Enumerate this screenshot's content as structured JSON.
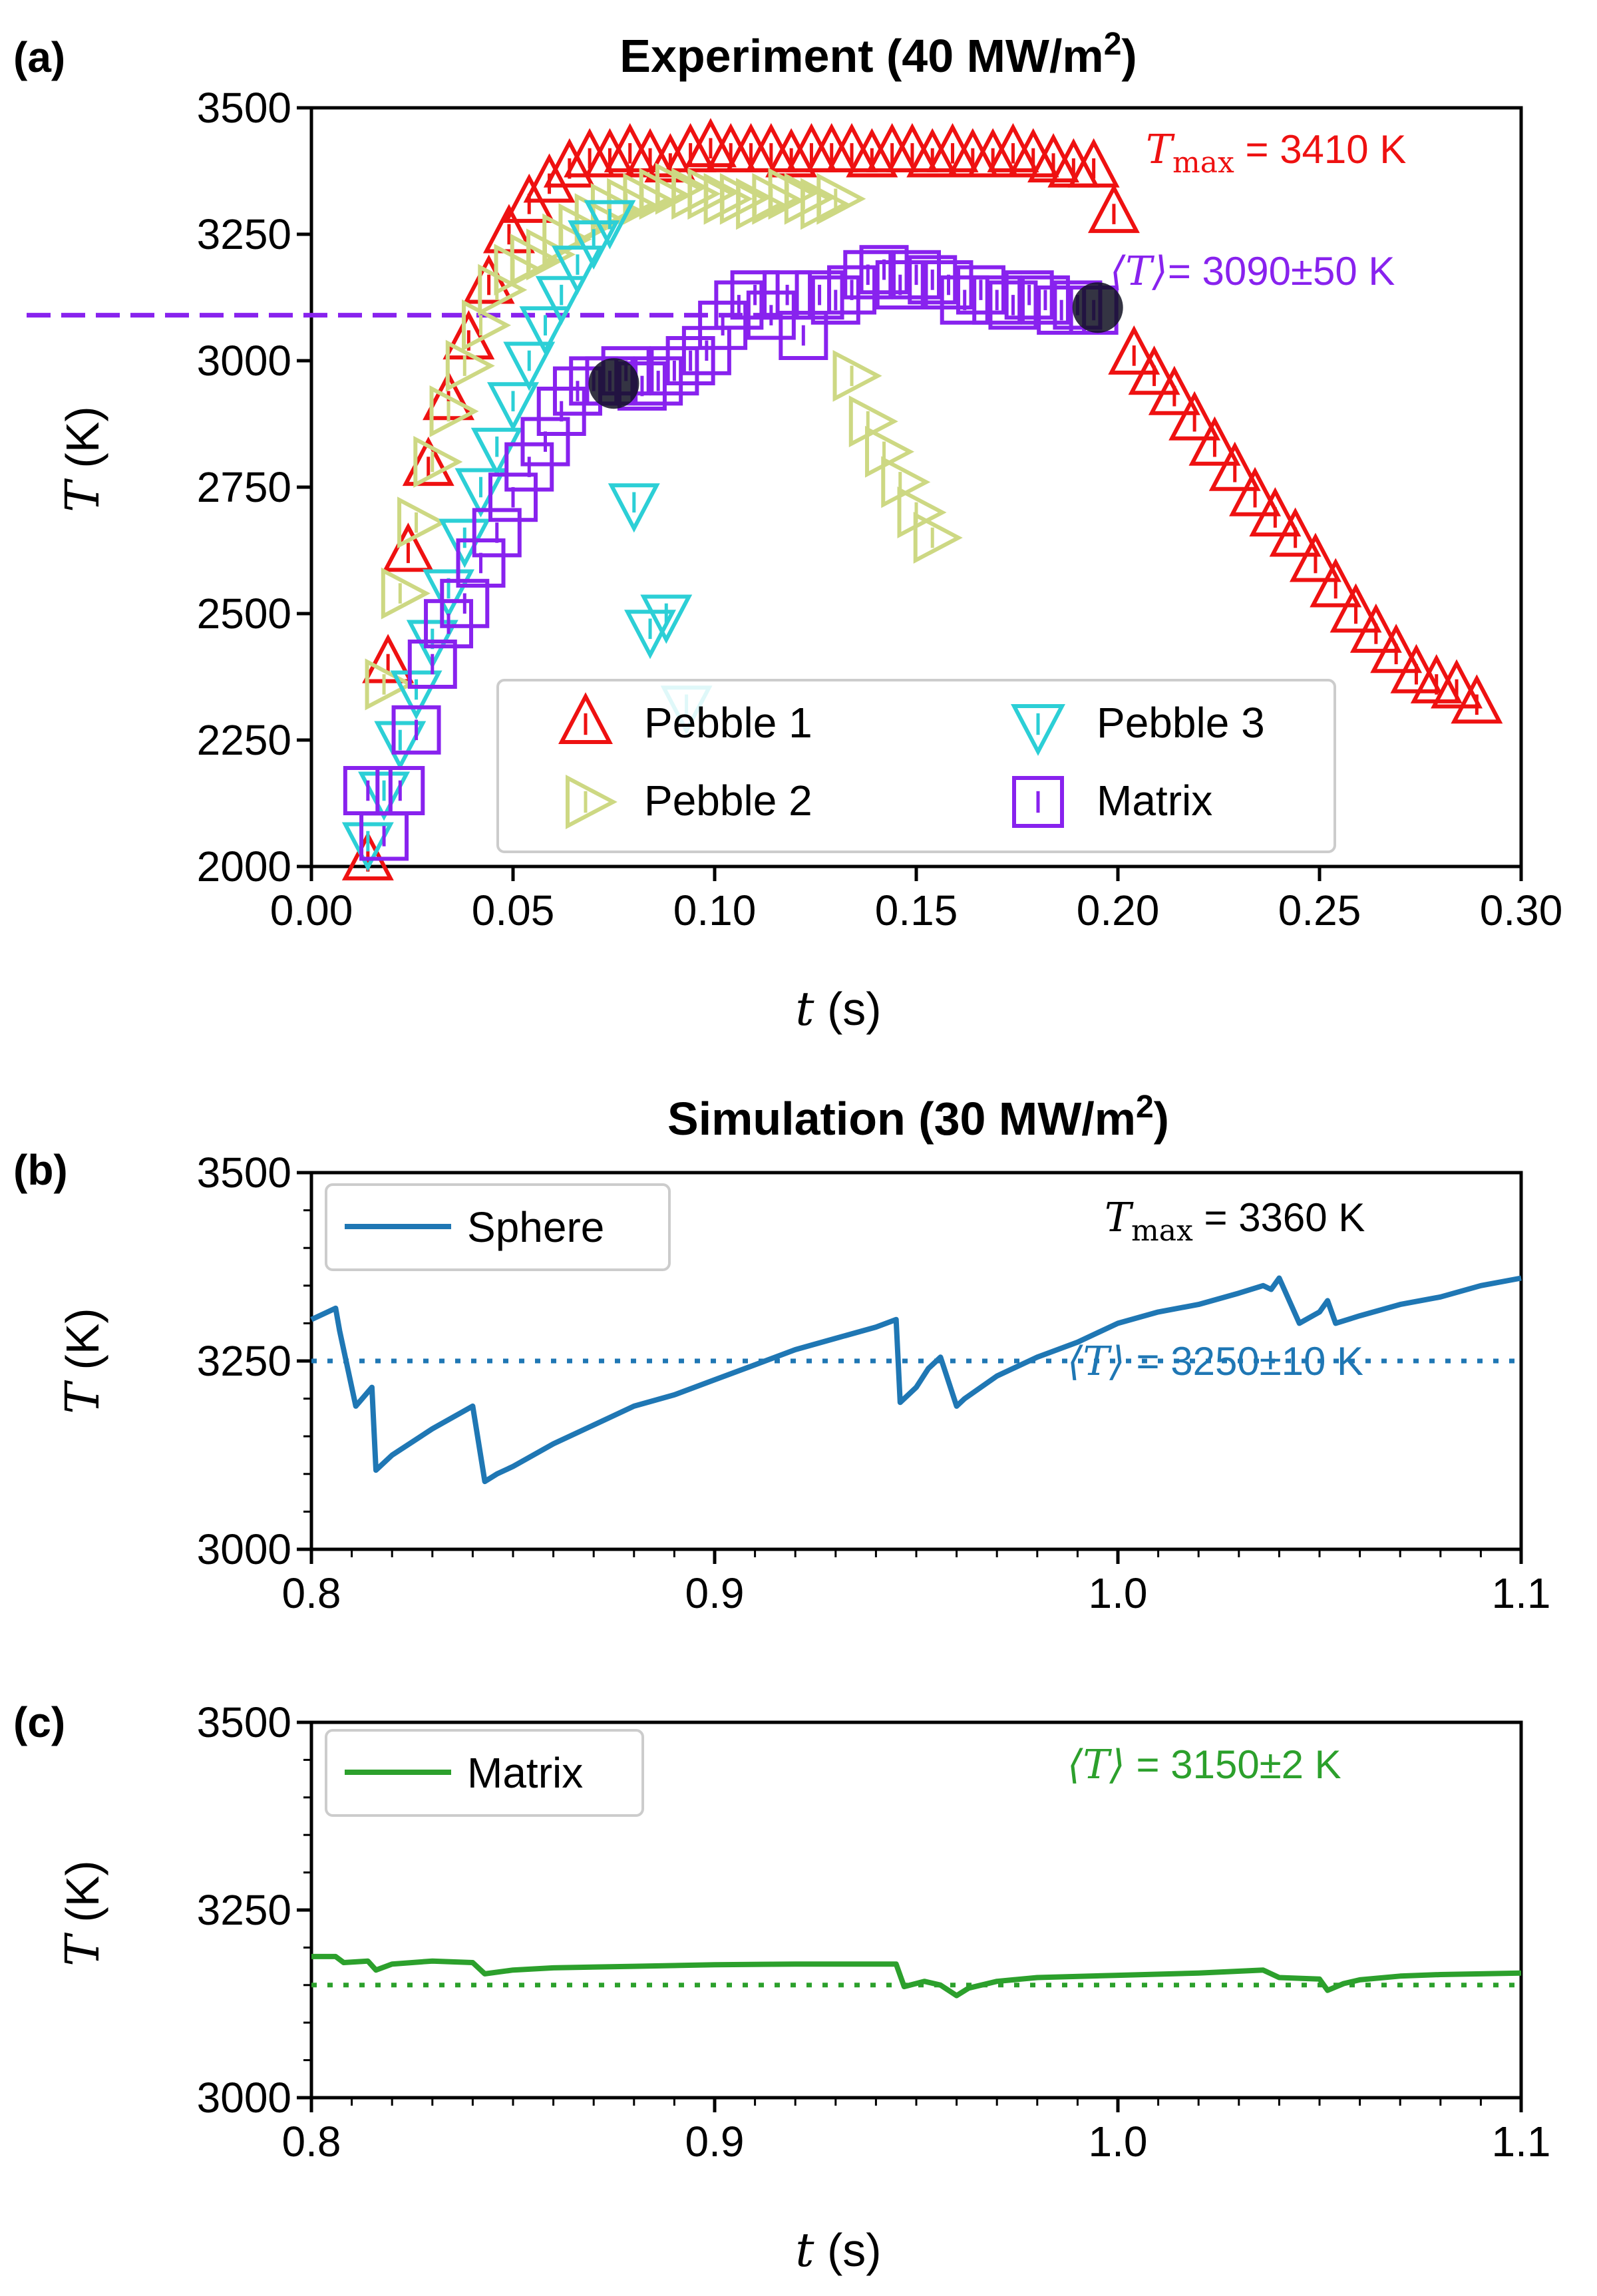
{
  "chart_data": [
    {
      "panel": "(a)",
      "type": "scatter",
      "title": "Experiment (40 MW/m",
      "title_sup": "2",
      "title_end": ")",
      "xlabel_var": "t",
      "xlabel_unit": " (s)",
      "ylabel_var": "T",
      "ylabel_unit": " (K)",
      "xlim": [
        0,
        0.3
      ],
      "ylim": [
        2000,
        3500
      ],
      "xticks": [
        "0.00",
        "0.05",
        "0.10",
        "0.15",
        "0.20",
        "0.25",
        "0.30"
      ],
      "yticks": [
        "2000",
        "2250",
        "2500",
        "2750",
        "3000",
        "3250",
        "3500"
      ],
      "annotations": {
        "tmax_var": "T",
        "tmax_sub": "max",
        "tmax_text": " = 3410 K",
        "tmean_var": "⟨T⟩",
        "tmean_text": "=  3090±50 K"
      },
      "mean_line": 3090,
      "highlight_points": [
        [
          0.075,
          2955
        ],
        [
          0.195,
          3105
        ]
      ],
      "legend": [
        "Pebble 1",
        "Pebble 2",
        "Pebble 3",
        "Matrix"
      ],
      "series": [
        {
          "name": "Pebble 1",
          "marker": "triangle-up",
          "color": "#ee1111",
          "x": [
            0.014,
            0.019,
            0.024,
            0.029,
            0.034,
            0.039,
            0.044,
            0.049,
            0.054,
            0.059,
            0.064,
            0.069,
            0.074,
            0.079,
            0.084,
            0.089,
            0.094,
            0.099,
            0.104,
            0.109,
            0.114,
            0.119,
            0.124,
            0.129,
            0.134,
            0.139,
            0.144,
            0.149,
            0.154,
            0.159,
            0.164,
            0.169,
            0.174,
            0.179,
            0.184,
            0.189,
            0.194,
            0.199,
            0.204,
            0.209,
            0.214,
            0.219,
            0.224,
            0.229,
            0.234,
            0.239,
            0.244,
            0.249,
            0.254,
            0.259,
            0.264,
            0.269,
            0.274,
            0.279,
            0.284,
            0.289
          ],
          "y": [
            2010,
            2400,
            2620,
            2790,
            2920,
            3040,
            3150,
            3250,
            3310,
            3350,
            3380,
            3400,
            3400,
            3410,
            3400,
            3390,
            3410,
            3420,
            3410,
            3410,
            3410,
            3400,
            3410,
            3410,
            3410,
            3400,
            3410,
            3410,
            3400,
            3410,
            3400,
            3400,
            3410,
            3400,
            3390,
            3380,
            3380,
            3290,
            3010,
            2970,
            2930,
            2880,
            2830,
            2780,
            2730,
            2690,
            2650,
            2600,
            2550,
            2500,
            2460,
            2420,
            2380,
            2360,
            2350,
            2320
          ]
        },
        {
          "name": "Pebble 2",
          "marker": "triangle-right",
          "color": "#cdd883",
          "x": [
            0.018,
            0.022,
            0.026,
            0.03,
            0.034,
            0.038,
            0.042,
            0.046,
            0.05,
            0.054,
            0.058,
            0.062,
            0.066,
            0.07,
            0.074,
            0.078,
            0.082,
            0.086,
            0.09,
            0.094,
            0.098,
            0.102,
            0.106,
            0.11,
            0.114,
            0.118,
            0.122,
            0.126,
            0.13,
            0.134,
            0.138,
            0.142,
            0.146,
            0.15,
            0.154
          ],
          "y": [
            2360,
            2540,
            2680,
            2800,
            2900,
            2990,
            3070,
            3140,
            3180,
            3200,
            3210,
            3240,
            3260,
            3280,
            3300,
            3310,
            3320,
            3330,
            3340,
            3330,
            3330,
            3320,
            3320,
            3310,
            3320,
            3330,
            3320,
            3310,
            3320,
            2970,
            2880,
            2820,
            2760,
            2700,
            2650
          ]
        },
        {
          "name": "Pebble 3",
          "marker": "triangle-down",
          "color": "#2ccfd6",
          "x": [
            0.014,
            0.018,
            0.022,
            0.026,
            0.03,
            0.034,
            0.038,
            0.042,
            0.046,
            0.05,
            0.054,
            0.058,
            0.062,
            0.066,
            0.07,
            0.074,
            0.08,
            0.084,
            0.088,
            0.093
          ],
          "y": [
            2050,
            2150,
            2250,
            2350,
            2450,
            2550,
            2650,
            2750,
            2830,
            2920,
            3000,
            3070,
            3130,
            3190,
            3240,
            3280,
            2720,
            2470,
            2500,
            2320
          ]
        },
        {
          "name": "Matrix",
          "marker": "square",
          "color": "#8822ee",
          "x": [
            0.014,
            0.018,
            0.022,
            0.026,
            0.03,
            0.034,
            0.038,
            0.042,
            0.046,
            0.05,
            0.054,
            0.058,
            0.062,
            0.066,
            0.07,
            0.074,
            0.078,
            0.082,
            0.086,
            0.09,
            0.094,
            0.098,
            0.102,
            0.106,
            0.11,
            0.114,
            0.118,
            0.122,
            0.126,
            0.13,
            0.134,
            0.138,
            0.142,
            0.146,
            0.15,
            0.154,
            0.158,
            0.162,
            0.166,
            0.17,
            0.174,
            0.178,
            0.182,
            0.186,
            0.19,
            0.194
          ],
          "y": [
            2150,
            2060,
            2150,
            2270,
            2400,
            2480,
            2520,
            2600,
            2660,
            2730,
            2790,
            2840,
            2900,
            2940,
            2960,
            2960,
            2980,
            2950,
            2960,
            2980,
            3000,
            3020,
            3070,
            3110,
            3130,
            3090,
            3130,
            3050,
            3130,
            3120,
            3140,
            3170,
            3180,
            3150,
            3170,
            3160,
            3150,
            3120,
            3140,
            3120,
            3110,
            3130,
            3120,
            3100,
            3110,
            3100
          ]
        }
      ]
    },
    {
      "panel": "(b)",
      "type": "line",
      "title": "Simulation (30 MW/m",
      "title_sup": "2",
      "title_end": ")",
      "ylabel_var": "T",
      "ylabel_unit": " (K)",
      "xlim": [
        0.8,
        1.1
      ],
      "ylim": [
        3000,
        3500
      ],
      "xticks": [
        "0.8",
        "0.9",
        "1.0",
        "1.1"
      ],
      "yticks": [
        "3000",
        "3250",
        "3500"
      ],
      "legend": [
        "Sphere"
      ],
      "annotations": {
        "tmax_var": "T",
        "tmax_sub": "max",
        "tmax_text": " = 3360 K",
        "tmean_var": "⟨T⟩",
        "tmean_text": " = 3250±10 K"
      },
      "mean_line": 3250,
      "series": [
        {
          "name": "Sphere",
          "color": "#1f77b4",
          "x": [
            0.8,
            0.806,
            0.807,
            0.811,
            0.815,
            0.816,
            0.82,
            0.83,
            0.84,
            0.843,
            0.846,
            0.85,
            0.86,
            0.87,
            0.88,
            0.89,
            0.9,
            0.91,
            0.92,
            0.93,
            0.94,
            0.945,
            0.946,
            0.95,
            0.953,
            0.956,
            0.96,
            0.962,
            0.97,
            0.98,
            0.99,
            1.0,
            1.01,
            1.02,
            1.03,
            1.036,
            1.038,
            1.04,
            1.045,
            1.05,
            1.052,
            1.054,
            1.06,
            1.07,
            1.08,
            1.09,
            1.1
          ],
          "y": [
            3305,
            3320,
            3290,
            3190,
            3215,
            3105,
            3125,
            3160,
            3190,
            3090,
            3100,
            3110,
            3140,
            3165,
            3190,
            3205,
            3225,
            3245,
            3265,
            3280,
            3295,
            3305,
            3195,
            3215,
            3240,
            3255,
            3190,
            3200,
            3230,
            3255,
            3275,
            3300,
            3315,
            3325,
            3340,
            3350,
            3345,
            3360,
            3300,
            3315,
            3330,
            3300,
            3310,
            3325,
            3335,
            3350,
            3360
          ]
        }
      ]
    },
    {
      "panel": "(c)",
      "type": "line",
      "xlabel_var": "t",
      "xlabel_unit": " (s)",
      "ylabel_var": "T",
      "ylabel_unit": " (K)",
      "xlim": [
        0.8,
        1.1
      ],
      "ylim": [
        3000,
        3500
      ],
      "xticks": [
        "0.8",
        "0.9",
        "1.0",
        "1.1"
      ],
      "yticks": [
        "3000",
        "3250",
        "3500"
      ],
      "legend": [
        "Matrix"
      ],
      "annotations": {
        "tmean_var": "⟨T⟩",
        "tmean_text": " = 3150±2 K"
      },
      "mean_line": 3150,
      "series": [
        {
          "name": "Matrix",
          "color": "#2ca02c",
          "x": [
            0.8,
            0.806,
            0.808,
            0.814,
            0.816,
            0.82,
            0.83,
            0.84,
            0.843,
            0.85,
            0.86,
            0.88,
            0.9,
            0.92,
            0.94,
            0.945,
            0.947,
            0.952,
            0.956,
            0.96,
            0.963,
            0.97,
            0.98,
            1.0,
            1.02,
            1.036,
            1.04,
            1.05,
            1.052,
            1.056,
            1.06,
            1.07,
            1.08,
            1.1
          ],
          "y": [
            3188,
            3188,
            3180,
            3182,
            3170,
            3178,
            3182,
            3180,
            3165,
            3170,
            3173,
            3175,
            3177,
            3178,
            3178,
            3178,
            3148,
            3155,
            3150,
            3136,
            3146,
            3155,
            3160,
            3163,
            3166,
            3170,
            3160,
            3158,
            3143,
            3152,
            3157,
            3162,
            3164,
            3166
          ]
        }
      ]
    }
  ]
}
